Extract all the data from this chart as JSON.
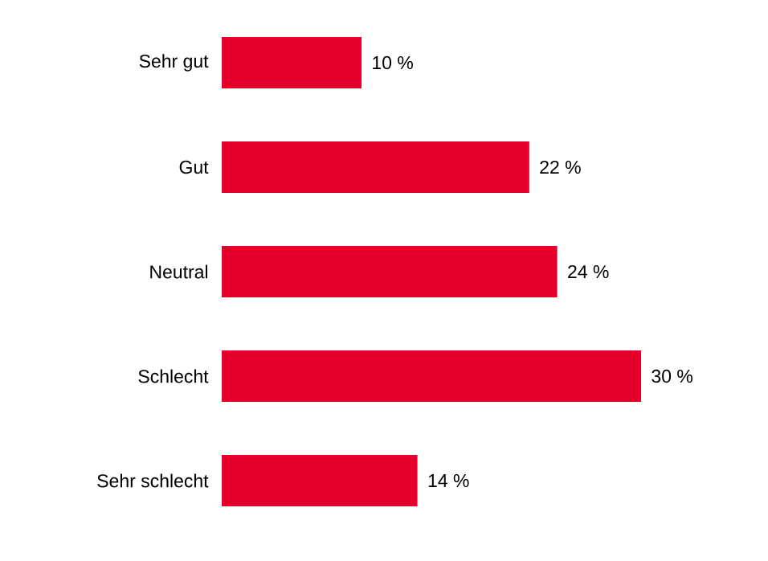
{
  "chart_data": {
    "type": "bar",
    "orientation": "horizontal",
    "categories": [
      "Sehr gut",
      "Gut",
      "Neutral",
      "Schlecht",
      "Sehr schlecht"
    ],
    "values": [
      10,
      22,
      24,
      30,
      14
    ],
    "value_labels": [
      "10 %",
      "22 %",
      "24 %",
      "30 %",
      "14 %"
    ],
    "color": "#e4002b"
  }
}
